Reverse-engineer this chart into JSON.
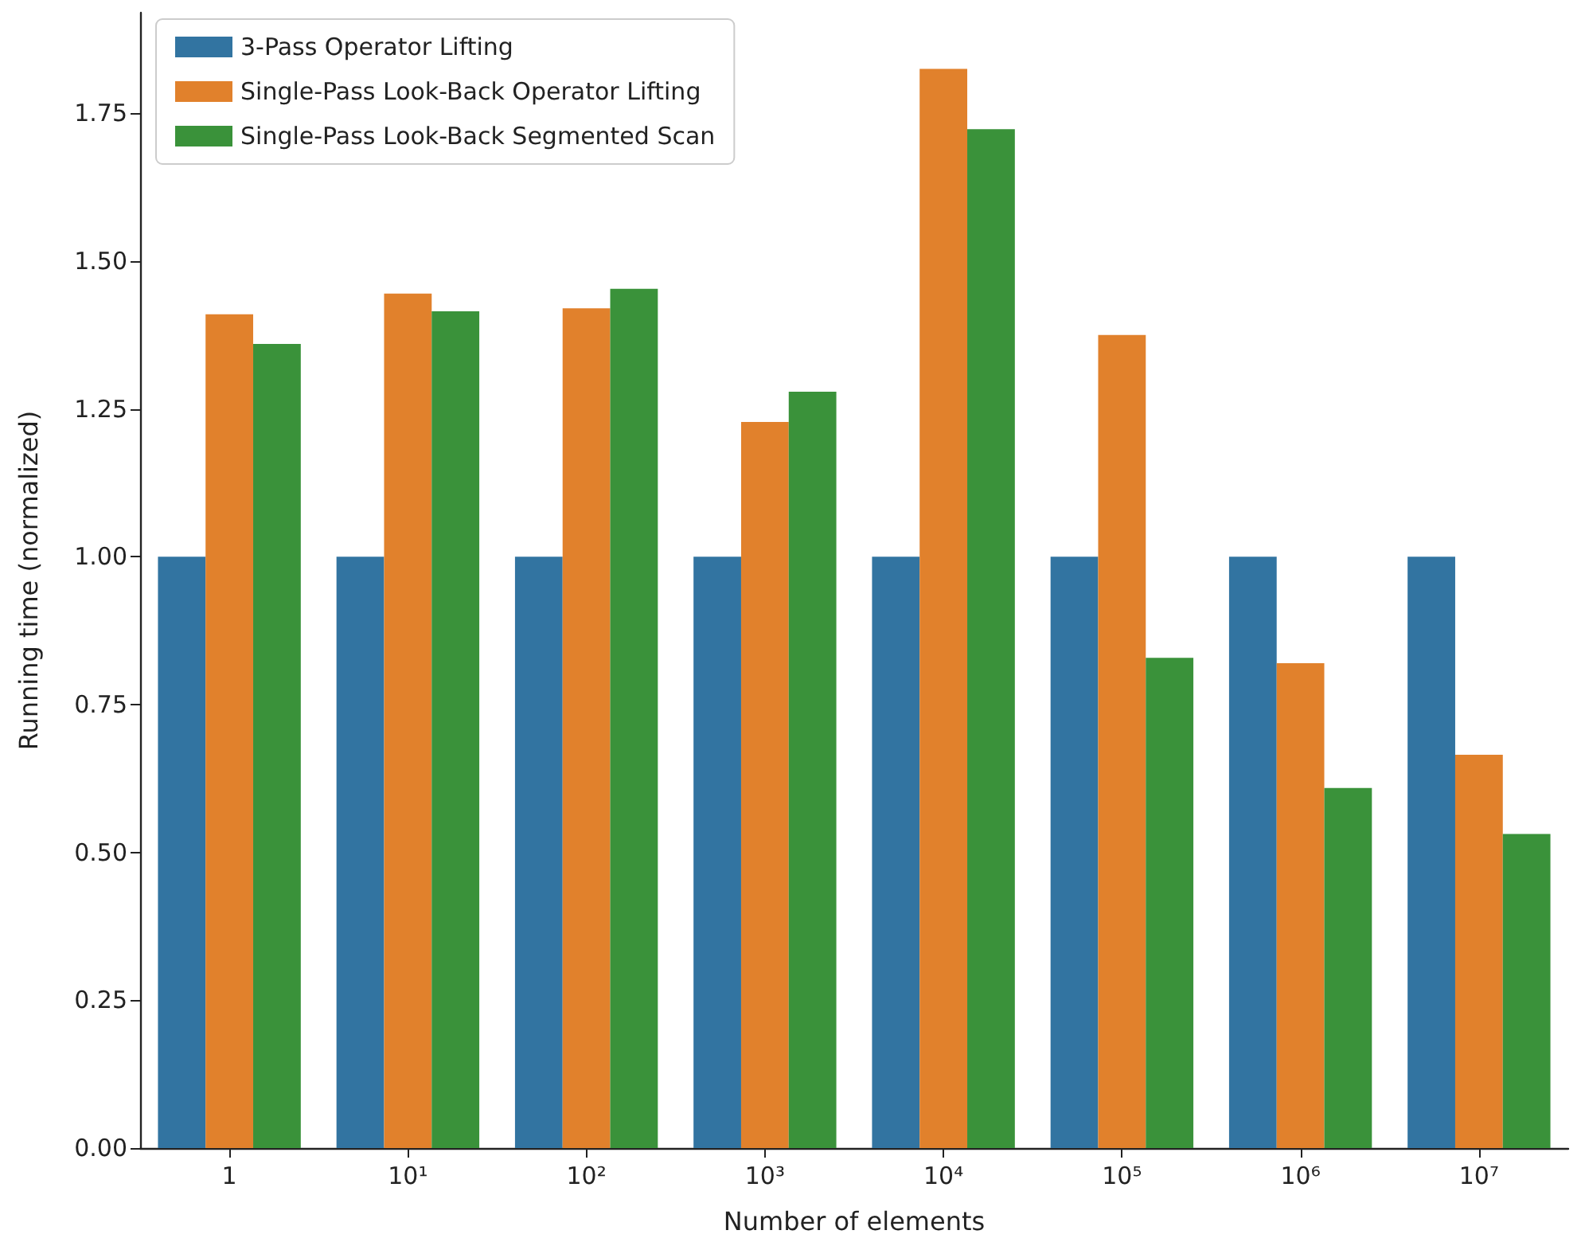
{
  "chart_data": {
    "type": "bar",
    "xlabel": "Number of elements",
    "ylabel": "Running time (normalized)",
    "categories": [
      "1",
      "10¹",
      "10²",
      "10³",
      "10⁴",
      "10⁵",
      "10⁶",
      "10⁷"
    ],
    "series": [
      {
        "name": "3-Pass Operator Lifting",
        "color": "#3274a1",
        "values": [
          1,
          1,
          1,
          1,
          1,
          1,
          1,
          1
        ]
      },
      {
        "name": "Single-Pass Look-Back Operator Lifting",
        "color": "#e1812c",
        "values": [
          1.41,
          1.445,
          1.42,
          1.228,
          1.825,
          1.375,
          0.82,
          0.665
        ]
      },
      {
        "name": "Single-Pass Look-Back Segmented Scan",
        "color": "#3a923a",
        "values": [
          1.36,
          1.415,
          1.453,
          1.279,
          1.723,
          0.829,
          0.609,
          0.531
        ]
      }
    ],
    "ylim": [
      0,
      1.92
    ],
    "yticks": [
      {
        "value": 0,
        "label": "0.00"
      },
      {
        "value": 0.25,
        "label": "0.25"
      },
      {
        "value": 0.5,
        "label": "0.50"
      },
      {
        "value": 0.75,
        "label": "0.75"
      },
      {
        "value": 1,
        "label": "1.00"
      },
      {
        "value": 1.25,
        "label": "1.25"
      },
      {
        "value": 1.5,
        "label": "1.50"
      },
      {
        "value": 1.75,
        "label": "1.75"
      }
    ],
    "grid": false,
    "legend": "top left"
  }
}
